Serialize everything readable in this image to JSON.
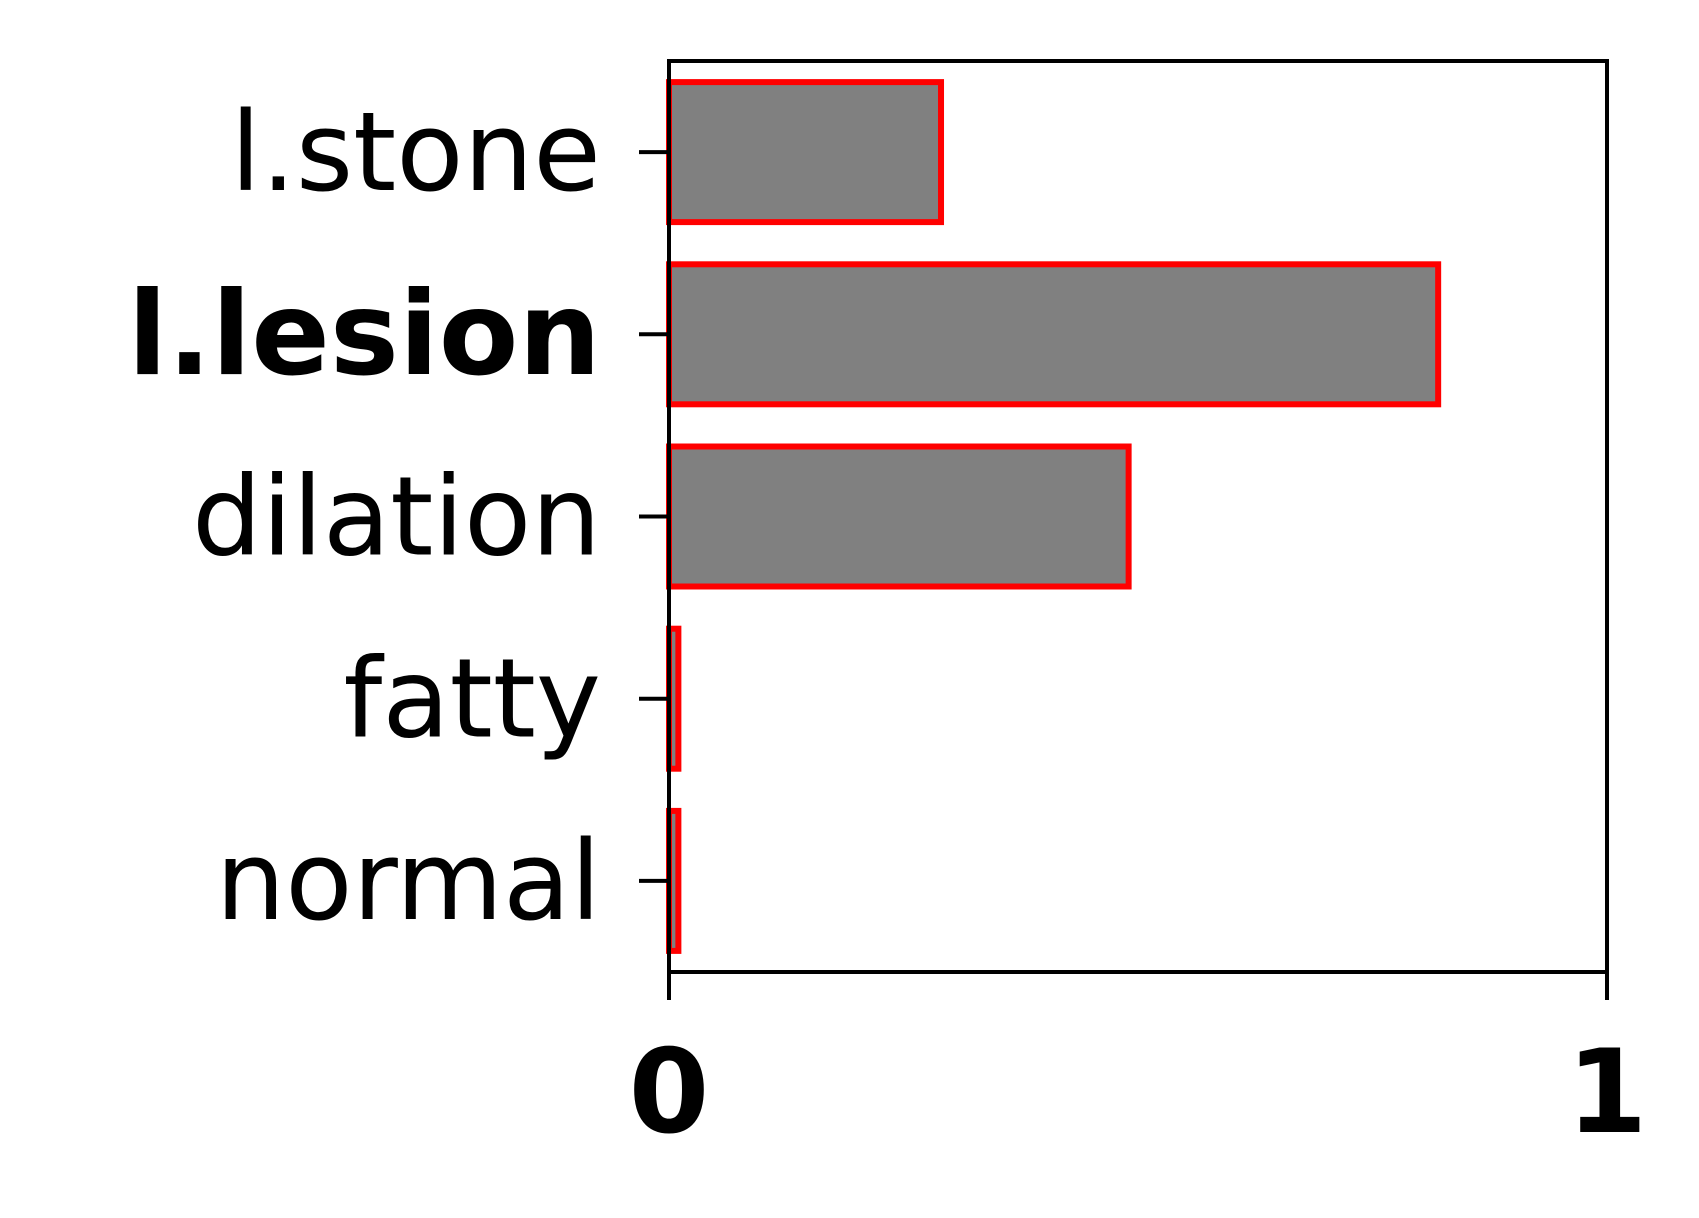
{
  "chart_data": {
    "type": "bar",
    "orientation": "horizontal",
    "categories": [
      "l.stone",
      "l.lesion",
      "dilation",
      "fatty",
      "normal"
    ],
    "values": [
      0.29,
      0.82,
      0.49,
      0.01,
      0.01
    ],
    "highlighted_category": "l.lesion",
    "xlim": [
      0,
      1
    ],
    "x_ticks": [
      "0",
      "1"
    ],
    "title": "",
    "xlabel": "",
    "ylabel": "",
    "grid": false,
    "legend": "none",
    "colors": {
      "bar_fill": "#808080",
      "bar_edge": "#ff0000",
      "axis": "#000000",
      "background": "#ffffff"
    }
  }
}
